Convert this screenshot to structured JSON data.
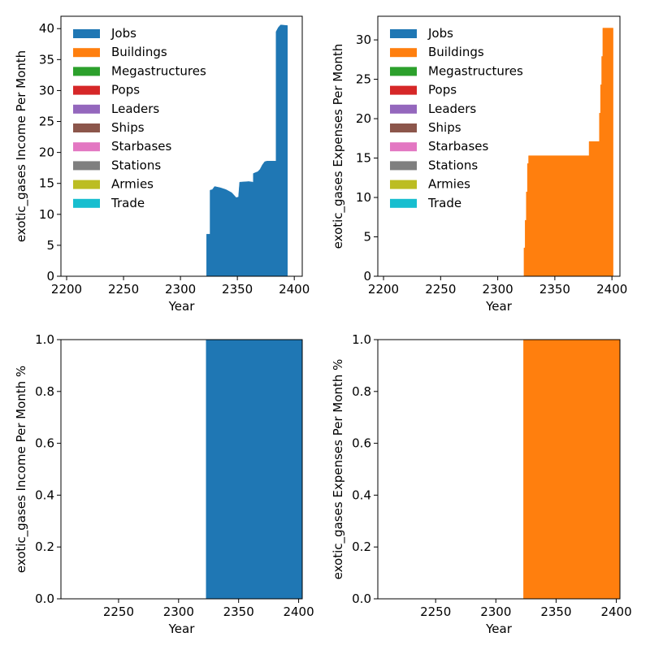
{
  "chart_data": [
    {
      "type": "area",
      "stacked": true,
      "xlabel": "Year",
      "ylabel": "exotic_gases Income Per Month",
      "xlim": [
        2195,
        2407
      ],
      "ylim": [
        0,
        42
      ],
      "xticks": [
        2200,
        2250,
        2300,
        2350,
        2400
      ],
      "yticks": [
        0,
        5,
        10,
        15,
        20,
        25,
        30,
        35,
        40
      ],
      "legend": {
        "placement": "top-left"
      },
      "series": [
        {
          "name": "Jobs",
          "color": "#1f77b4",
          "points": [
            [
              2200,
              0
            ],
            [
              2323,
              0
            ],
            [
              2323,
              6.8
            ],
            [
              2326,
              6.8
            ],
            [
              2326,
              13.9
            ],
            [
              2328,
              14.0
            ],
            [
              2330,
              14.5
            ],
            [
              2335,
              14.3
            ],
            [
              2340,
              14.0
            ],
            [
              2345,
              13.5
            ],
            [
              2349,
              12.7
            ],
            [
              2351,
              12.8
            ],
            [
              2352,
              15.2
            ],
            [
              2360,
              15.3
            ],
            [
              2364,
              15.2
            ],
            [
              2364,
              16.6
            ],
            [
              2368,
              16.9
            ],
            [
              2370,
              17.3
            ],
            [
              2372,
              18.0
            ],
            [
              2374,
              18.5
            ],
            [
              2376,
              18.6
            ],
            [
              2384,
              18.6
            ],
            [
              2384,
              39.5
            ],
            [
              2386,
              40.2
            ],
            [
              2388,
              40.6
            ],
            [
              2394,
              40.5
            ],
            [
              2394,
              0
            ]
          ]
        },
        {
          "name": "Buildings",
          "color": "#ff7f0e",
          "points": []
        },
        {
          "name": "Megastructures",
          "color": "#2ca02c",
          "points": []
        },
        {
          "name": "Pops",
          "color": "#d62728",
          "points": []
        },
        {
          "name": "Leaders",
          "color": "#9467bd",
          "points": []
        },
        {
          "name": "Ships",
          "color": "#8c564b",
          "points": []
        },
        {
          "name": "Starbases",
          "color": "#e377c2",
          "points": []
        },
        {
          "name": "Stations",
          "color": "#7f7f7f",
          "points": []
        },
        {
          "name": "Armies",
          "color": "#bcbd22",
          "points": []
        },
        {
          "name": "Trade",
          "color": "#17becf",
          "points": []
        }
      ]
    },
    {
      "type": "area",
      "stacked": true,
      "xlabel": "Year",
      "ylabel": "exotic_gases  Expenses Per Month",
      "xlim": [
        2195,
        2407
      ],
      "ylim": [
        0,
        33
      ],
      "xticks": [
        2200,
        2250,
        2300,
        2350,
        2400
      ],
      "yticks": [
        0,
        5,
        10,
        15,
        20,
        25,
        30
      ],
      "legend": {
        "placement": "top-left"
      },
      "series": [
        {
          "name": "Jobs",
          "color": "#1f77b4",
          "points": []
        },
        {
          "name": "Buildings",
          "color": "#ff7f0e",
          "points": [
            [
              2200,
              0
            ],
            [
              2323,
              0
            ],
            [
              2323,
              3.6
            ],
            [
              2324,
              3.6
            ],
            [
              2324,
              7.1
            ],
            [
              2325,
              7.1
            ],
            [
              2325,
              10.7
            ],
            [
              2326,
              10.7
            ],
            [
              2326,
              14.3
            ],
            [
              2327,
              14.3
            ],
            [
              2327,
              15.3
            ],
            [
              2380,
              15.3
            ],
            [
              2380,
              17.1
            ],
            [
              2389,
              17.1
            ],
            [
              2389,
              20.7
            ],
            [
              2390,
              20.7
            ],
            [
              2390,
              24.3
            ],
            [
              2391,
              24.3
            ],
            [
              2391,
              27.9
            ],
            [
              2392,
              27.9
            ],
            [
              2392,
              31.5
            ],
            [
              2401,
              31.5
            ],
            [
              2401,
              0
            ]
          ]
        },
        {
          "name": "Megastructures",
          "color": "#2ca02c",
          "points": []
        },
        {
          "name": "Pops",
          "color": "#d62728",
          "points": []
        },
        {
          "name": "Leaders",
          "color": "#9467bd",
          "points": []
        },
        {
          "name": "Ships",
          "color": "#8c564b",
          "points": []
        },
        {
          "name": "Starbases",
          "color": "#e377c2",
          "points": []
        },
        {
          "name": "Stations",
          "color": "#7f7f7f",
          "points": []
        },
        {
          "name": "Armies",
          "color": "#bcbd22",
          "points": []
        },
        {
          "name": "Trade",
          "color": "#17becf",
          "points": []
        }
      ]
    },
    {
      "type": "area",
      "stacked": true,
      "xlabel": "Year",
      "ylabel": "exotic_gases  Income Per Month %",
      "xlim": [
        2202,
        2403
      ],
      "ylim": [
        0,
        1
      ],
      "xticks": [
        2250,
        2300,
        2350,
        2400
      ],
      "yticks": [
        0.0,
        0.2,
        0.4,
        0.6,
        0.8,
        1.0
      ],
      "series": [
        {
          "name": "Jobs",
          "color": "#1f77b4",
          "points": [
            [
              2323,
              0
            ],
            [
              2323,
              1
            ],
            [
              2403,
              1
            ],
            [
              2403,
              0
            ]
          ]
        }
      ]
    },
    {
      "type": "area",
      "stacked": true,
      "xlabel": "Year",
      "ylabel": "exotic_gases  Expenses Per Month %",
      "xlim": [
        2202,
        2403
      ],
      "ylim": [
        0,
        1
      ],
      "xticks": [
        2250,
        2300,
        2350,
        2400
      ],
      "yticks": [
        0.0,
        0.2,
        0.4,
        0.6,
        0.8,
        1.0
      ],
      "series": [
        {
          "name": "Buildings",
          "color": "#ff7f0e",
          "points": [
            [
              2323,
              0
            ],
            [
              2323,
              1
            ],
            [
              2403,
              1
            ],
            [
              2403,
              0
            ]
          ]
        }
      ]
    }
  ]
}
